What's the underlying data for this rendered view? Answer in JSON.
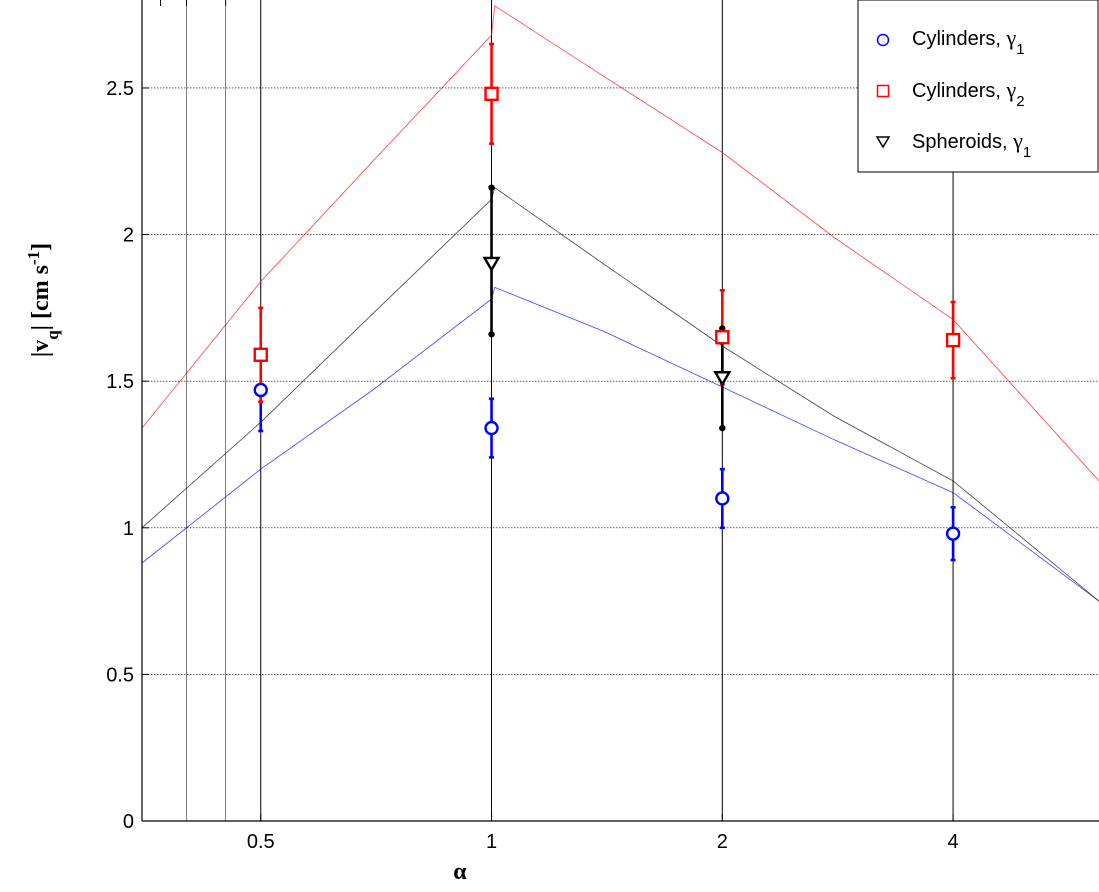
{
  "chart_data": {
    "type": "scatter",
    "title": "",
    "xlabel": "α",
    "ylabel": {
      "main": "|v",
      "sub": "q",
      "mid": "| [cm s",
      "sup": "-1",
      "end": "]"
    },
    "x_scale": "log2",
    "xlim": [
      0.35,
      6.2
    ],
    "ylim": [
      0,
      2.8
    ],
    "x_ticks": [
      0.5,
      1,
      2,
      4
    ],
    "x_tick_labels": [
      "0.5",
      "1",
      "2",
      "4"
    ],
    "y_ticks": [
      0,
      0.5,
      1,
      1.5,
      2,
      2.5
    ],
    "y_tick_labels": [
      "0",
      "0.5",
      "1",
      "1.5",
      "2",
      "2.5"
    ],
    "minor_x_grid": [
      0.4,
      0.45,
      8
    ],
    "grid": true,
    "legend_position": "top-right",
    "colors": {
      "blue": "#0000ff",
      "red": "#ff0000",
      "black": "#000000",
      "grid": "#000000"
    },
    "series": [
      {
        "name": "Cylinders, ",
        "name_sub": "1",
        "marker": "circle",
        "color": "#0000ff",
        "x": [
          0.5,
          1,
          2,
          4
        ],
        "y": [
          1.47,
          1.34,
          1.1,
          0.98
        ],
        "err_low": [
          1.33,
          1.24,
          1.0,
          0.89
        ],
        "err_high": [
          1.47,
          1.44,
          1.2,
          1.07
        ],
        "curve": {
          "x": [
            0.35,
            0.5,
            0.7,
            1.0,
            1.01,
            1.4,
            2.0,
            2.8,
            4.0,
            6.2
          ],
          "y": [
            0.88,
            1.2,
            1.47,
            1.78,
            1.82,
            1.67,
            1.48,
            1.3,
            1.12,
            0.75
          ]
        }
      },
      {
        "name": "Cylinders, ",
        "name_sub": "2",
        "marker": "square",
        "color": "#ff0000",
        "x": [
          0.5,
          1,
          2,
          4
        ],
        "y": [
          1.59,
          2.48,
          1.65,
          1.64
        ],
        "err_low": [
          1.43,
          2.31,
          1.49,
          1.51
        ],
        "err_high": [
          1.75,
          2.65,
          1.81,
          1.77
        ],
        "curve": {
          "x": [
            0.35,
            0.5,
            0.7,
            1.0,
            1.01,
            1.4,
            2.0,
            2.8,
            4.0,
            6.2
          ],
          "y": [
            1.34,
            1.84,
            2.25,
            2.68,
            2.78,
            2.54,
            2.28,
            1.99,
            1.71,
            1.16
          ]
        }
      },
      {
        "name": "Spheroids, ",
        "name_sub": "1",
        "marker": "triangle-down",
        "color": "#000000",
        "x": [
          1,
          2
        ],
        "y": [
          1.9,
          1.51
        ],
        "err_low": [
          1.66,
          1.34
        ],
        "err_high": [
          2.16,
          1.68
        ],
        "curve": {
          "x": [
            0.35,
            0.5,
            0.7,
            1.0,
            1.01,
            1.4,
            2.0,
            2.8,
            4.0,
            6.2
          ],
          "y": [
            1.0,
            1.36,
            1.73,
            2.12,
            2.16,
            1.9,
            1.62,
            1.38,
            1.16,
            0.75
          ]
        }
      }
    ]
  }
}
